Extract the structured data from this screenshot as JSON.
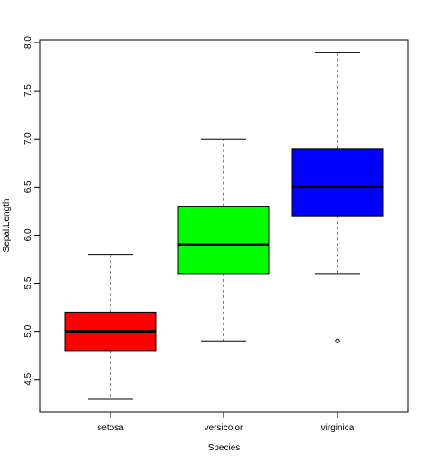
{
  "chart_data": {
    "type": "boxplot",
    "title": "",
    "xlabel": "Species",
    "ylabel": "Sepal.Length",
    "ylim": [
      4.15,
      8.05
    ],
    "yticks": [
      "4.5",
      "5.0",
      "5.5",
      "6.0",
      "6.5",
      "7.0",
      "7.5",
      "8.0"
    ],
    "categories": [
      "setosa",
      "versicolor",
      "virginica"
    ],
    "series": [
      {
        "category": "setosa",
        "min": 4.3,
        "q1": 4.8,
        "median": 5.0,
        "q3": 5.2,
        "max": 5.8,
        "outliers": [],
        "color": "#ff0000"
      },
      {
        "category": "versicolor",
        "min": 4.9,
        "q1": 5.6,
        "median": 5.9,
        "q3": 6.3,
        "max": 7.0,
        "outliers": [],
        "color": "#00ff00"
      },
      {
        "category": "virginica",
        "min": 5.6,
        "q1": 6.2,
        "median": 6.5,
        "q3": 6.9,
        "max": 7.9,
        "outliers": [
          4.9
        ],
        "color": "#0000ff"
      }
    ],
    "grid": false,
    "legend": "none"
  }
}
